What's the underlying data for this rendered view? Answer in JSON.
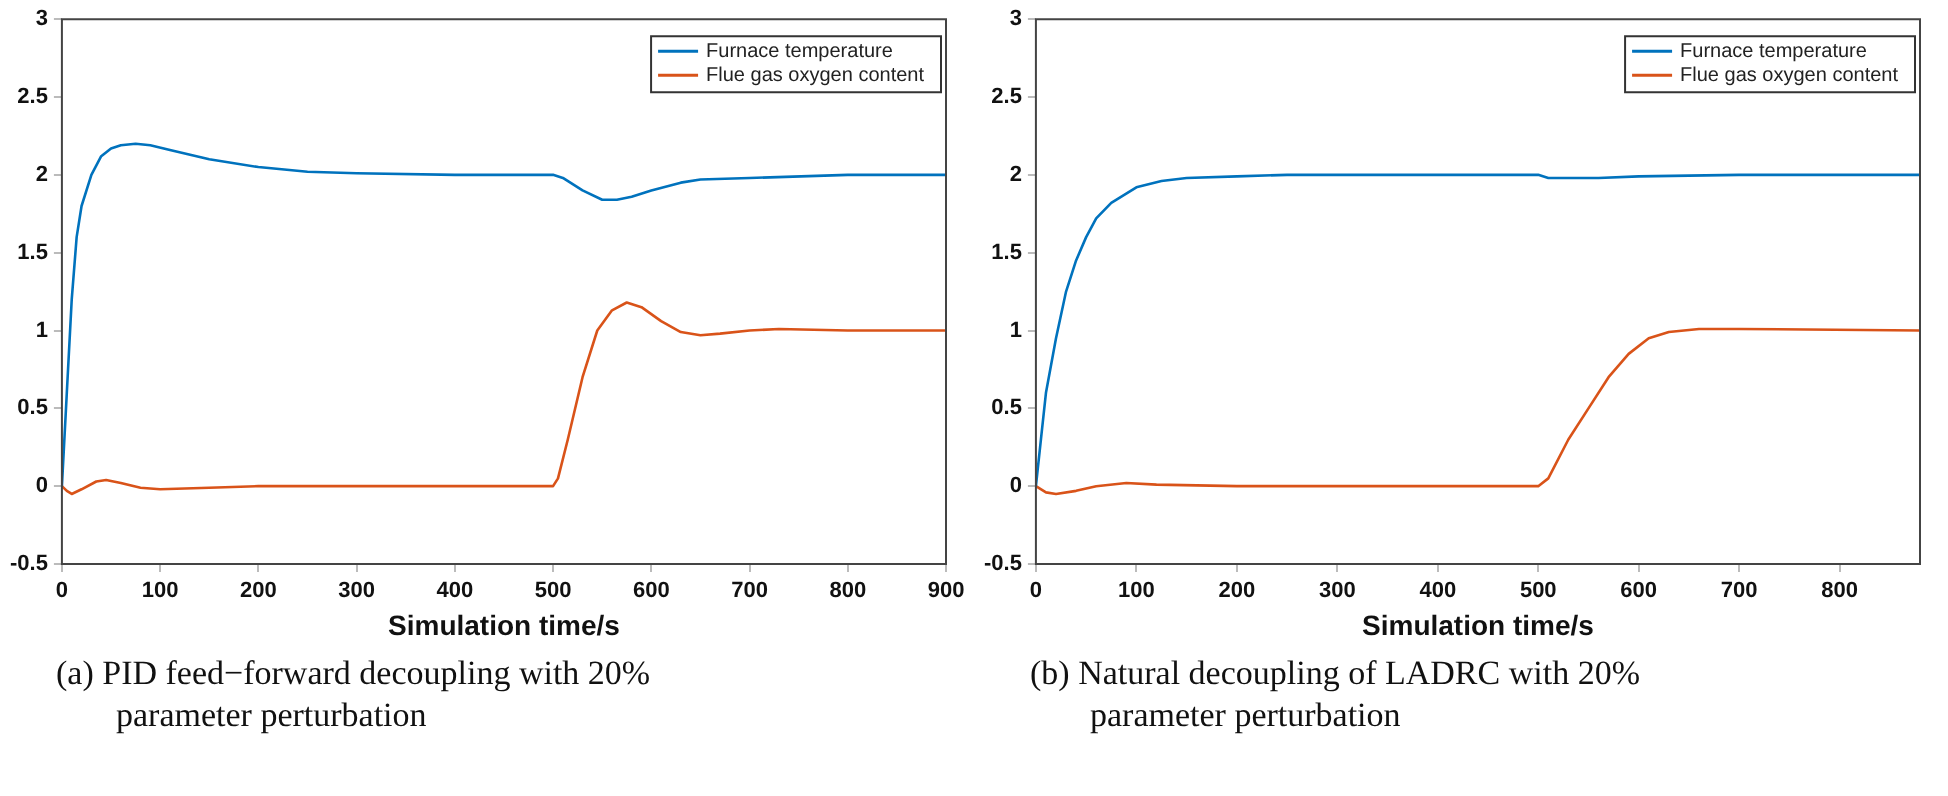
{
  "chart_data": [
    {
      "type": "line",
      "title": "(a) PID feed−forward decoupling with 20% parameter perturbation",
      "xlabel": "Simulation time/s",
      "legend": "top right",
      "grid": false,
      "marker": "none",
      "xlim": [
        0,
        900
      ],
      "xticks": [
        0,
        100,
        200,
        300,
        400,
        500,
        600,
        700,
        800,
        900
      ],
      "ylim": [
        -0.5,
        3
      ],
      "yticks": [
        -0.5,
        0,
        0.5,
        1,
        1.5,
        2,
        2.5,
        3
      ],
      "series": [
        {
          "name": "Furnace temperature",
          "color": "#0072bd",
          "x": [
            0,
            5,
            10,
            15,
            20,
            30,
            40,
            50,
            60,
            75,
            90,
            110,
            150,
            200,
            250,
            300,
            400,
            500,
            510,
            530,
            550,
            565,
            580,
            600,
            630,
            650,
            700,
            800,
            900
          ],
          "values": [
            0,
            0.6,
            1.2,
            1.6,
            1.8,
            2.0,
            2.12,
            2.17,
            2.19,
            2.2,
            2.19,
            2.16,
            2.1,
            2.05,
            2.02,
            2.01,
            2.0,
            2.0,
            1.98,
            1.9,
            1.84,
            1.84,
            1.86,
            1.9,
            1.95,
            1.97,
            1.98,
            2.0,
            2.0
          ]
        },
        {
          "name": "Flue gas oxygen content",
          "color": "#d95319",
          "x": [
            0,
            5,
            10,
            20,
            35,
            45,
            60,
            80,
            100,
            150,
            200,
            500,
            505,
            515,
            530,
            545,
            560,
            575,
            590,
            610,
            630,
            650,
            670,
            700,
            730,
            800,
            900
          ],
          "values": [
            0,
            -0.03,
            -0.05,
            -0.02,
            0.03,
            0.04,
            0.02,
            -0.01,
            -0.02,
            -0.01,
            0,
            0,
            0.05,
            0.3,
            0.7,
            1.0,
            1.13,
            1.18,
            1.15,
            1.06,
            0.99,
            0.97,
            0.98,
            1.0,
            1.01,
            1.0,
            1.0
          ]
        }
      ]
    },
    {
      "type": "line",
      "title": "(b) Natural decoupling of LADRC with 20% parameter perturbation",
      "xlabel": "Simulation time/s",
      "legend": "top right",
      "grid": false,
      "marker": "none",
      "xlim": [
        0,
        880
      ],
      "xticks": [
        0,
        100,
        200,
        300,
        400,
        500,
        600,
        700,
        800
      ],
      "ylim": [
        -0.5,
        3
      ],
      "yticks": [
        -0.5,
        0,
        0.5,
        1,
        1.5,
        2,
        2.5,
        3
      ],
      "series": [
        {
          "name": "Furnace temperature",
          "color": "#0072bd",
          "x": [
            0,
            5,
            10,
            20,
            30,
            40,
            50,
            60,
            75,
            100,
            125,
            150,
            200,
            250,
            500,
            510,
            530,
            560,
            600,
            700,
            880
          ],
          "values": [
            0,
            0.3,
            0.6,
            0.95,
            1.25,
            1.45,
            1.6,
            1.72,
            1.82,
            1.92,
            1.96,
            1.98,
            1.99,
            2.0,
            2.0,
            1.98,
            1.98,
            1.98,
            1.99,
            2.0,
            2.0
          ]
        },
        {
          "name": "Flue gas oxygen content",
          "color": "#d95319",
          "x": [
            0,
            10,
            20,
            40,
            60,
            90,
            120,
            200,
            500,
            510,
            530,
            550,
            570,
            590,
            610,
            630,
            660,
            700,
            880
          ],
          "values": [
            0,
            -0.04,
            -0.05,
            -0.03,
            0,
            0.02,
            0.01,
            0,
            0,
            0.05,
            0.3,
            0.5,
            0.7,
            0.85,
            0.95,
            0.99,
            1.01,
            1.01,
            1.0
          ]
        }
      ]
    }
  ]
}
